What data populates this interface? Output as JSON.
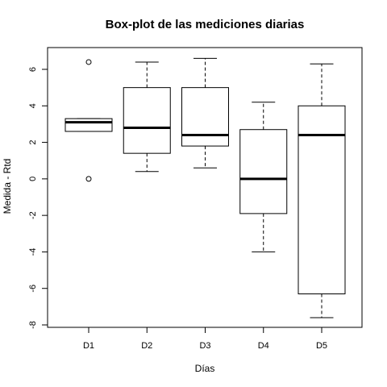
{
  "chart_data": {
    "type": "boxplot",
    "title": "Box-plot de las mediciones diarias",
    "xlabel": "Días",
    "ylabel": "Medida - Rtd",
    "ylim": [
      -8.2,
      7.2
    ],
    "yticks": [
      -8,
      -6,
      -4,
      -2,
      0,
      2,
      4,
      6
    ],
    "grid": false,
    "categories": [
      "D1",
      "D2",
      "D3",
      "D4",
      "D5"
    ],
    "boxes": [
      {
        "label": "D1",
        "whisker_low": 2.6,
        "q1": 2.6,
        "median": 3.1,
        "q3": 3.3,
        "whisker_high": 3.3,
        "outliers": [
          6.4,
          0.0
        ]
      },
      {
        "label": "D2",
        "whisker_low": 0.4,
        "q1": 1.4,
        "median": 2.8,
        "q3": 5.0,
        "whisker_high": 6.4,
        "outliers": []
      },
      {
        "label": "D3",
        "whisker_low": 0.6,
        "q1": 1.8,
        "median": 2.4,
        "q3": 5.0,
        "whisker_high": 6.6,
        "outliers": []
      },
      {
        "label": "D4",
        "whisker_low": -4.0,
        "q1": -1.9,
        "median": 0.0,
        "q3": 2.7,
        "whisker_high": 4.2,
        "outliers": []
      },
      {
        "label": "D5",
        "whisker_low": -7.6,
        "q1": -6.3,
        "median": 2.4,
        "q3": 4.0,
        "whisker_high": 6.3,
        "outliers": []
      }
    ],
    "colors": {
      "stroke": "#000000",
      "background": "#ffffff"
    }
  }
}
